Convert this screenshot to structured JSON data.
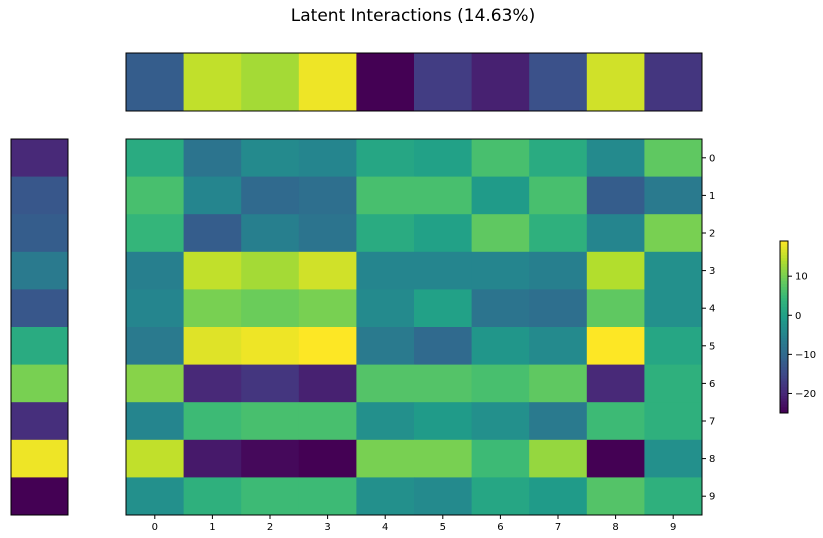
{
  "chart_data": {
    "type": "heatmap",
    "title": "Latent Interactions (14.63%)",
    "colormap": "viridis",
    "vmin": -25,
    "vmax": 19,
    "row_labels": [
      "0",
      "1",
      "2",
      "3",
      "4",
      "5",
      "6",
      "7",
      "8",
      "9"
    ],
    "col_labels": [
      "0",
      "1",
      "2",
      "3",
      "4",
      "5",
      "6",
      "7",
      "8",
      "9"
    ],
    "top_bar_values": [
      -12,
      15,
      13,
      18,
      -25,
      -17,
      -21,
      -14,
      16,
      -18
    ],
    "left_bar_values": [
      -20,
      -13,
      -12,
      -7,
      -13,
      2,
      10,
      -19,
      18,
      -25
    ],
    "matrix": [
      [
        2,
        -8,
        -4,
        -5,
        1,
        0,
        6,
        2,
        -4,
        8
      ],
      [
        6,
        -5,
        -10,
        -9,
        6,
        6,
        -1,
        6,
        -12,
        -7
      ],
      [
        4,
        -12,
        -6,
        -8,
        2,
        0,
        8,
        3,
        -5,
        10
      ],
      [
        -6,
        15,
        13,
        16,
        -5,
        -5,
        -5,
        -6,
        14,
        -3
      ],
      [
        -5,
        10,
        9,
        10,
        -4,
        0,
        -8,
        -9,
        8,
        -3
      ],
      [
        -7,
        17,
        18,
        19,
        -7,
        -10,
        -2,
        -4,
        19,
        1
      ],
      [
        11,
        -20,
        -18,
        -21,
        7,
        7,
        6,
        8,
        -20,
        3
      ],
      [
        -5,
        5,
        6,
        6,
        -3,
        -1,
        -3,
        -7,
        5,
        3
      ],
      [
        15,
        -22,
        -24,
        -25,
        10,
        10,
        5,
        12,
        -25,
        -3
      ],
      [
        -3,
        3,
        5,
        5,
        -3,
        -4,
        1,
        -1,
        7,
        3
      ]
    ],
    "colorbar_ticks": [
      10,
      0,
      -10,
      -20
    ]
  }
}
